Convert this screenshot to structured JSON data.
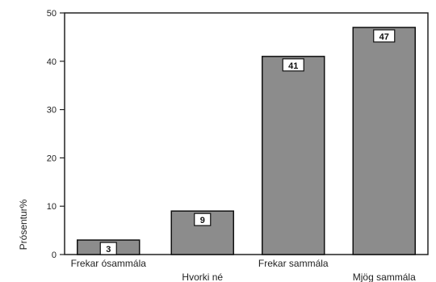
{
  "chart_data": {
    "type": "bar",
    "categories": [
      "Frekar ósammála",
      "Hvorki né",
      "Frekar sammála",
      "Mjög sammála"
    ],
    "values": [
      3,
      9,
      41,
      47
    ],
    "data_labels": [
      "3",
      "9",
      "41",
      "47"
    ],
    "title": "",
    "xlabel": "",
    "ylabel": "Prósentur%",
    "ylim": [
      0,
      50
    ],
    "yticks": [
      "0",
      "10",
      "20",
      "30",
      "40",
      "50"
    ],
    "grid": false,
    "legend": "none",
    "colors": {
      "bar": "#8c8c8c",
      "bar_edge": "#111111",
      "label_box": "#ffffff"
    }
  }
}
